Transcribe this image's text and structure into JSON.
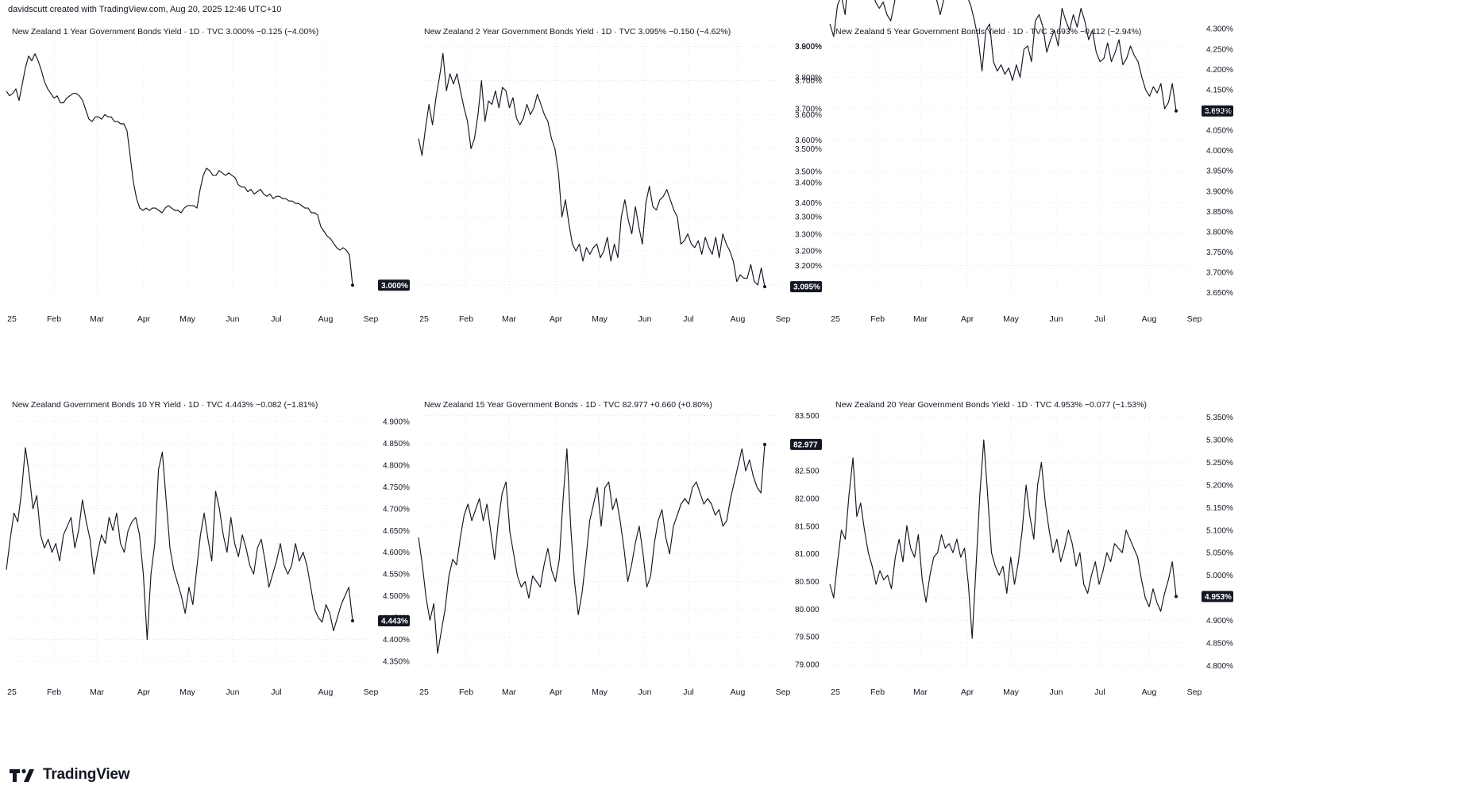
{
  "header": {
    "text": "davidscutt created with TradingView.com, Aug 20, 2025 12:46 UTC+10"
  },
  "footer": {
    "brand": "TradingView"
  },
  "x_axis_labels": [
    "25",
    "Feb",
    "Mar",
    "Apr",
    "May",
    "Jun",
    "Jul",
    "Aug",
    "Sep"
  ],
  "chart_data": [
    {
      "type": "line",
      "legend": "New Zealand 1 Year Government Bonds Yield · 1D · TVC  3.000%  −0.125 (−4.00%)",
      "last_label": "3.000%",
      "last": 3.0,
      "y_ticks": [],
      "ylim": [
        2.95,
        4.05
      ],
      "x_ticks": [
        "25",
        "Feb",
        "Mar",
        "Apr",
        "May",
        "Jun",
        "Jul",
        "Aug",
        "Sep"
      ],
      "values": [
        3.83,
        3.81,
        3.82,
        3.84,
        3.79,
        3.86,
        3.93,
        3.98,
        3.96,
        3.99,
        3.96,
        3.92,
        3.87,
        3.84,
        3.82,
        3.8,
        3.81,
        3.78,
        3.78,
        3.8,
        3.81,
        3.82,
        3.82,
        3.81,
        3.79,
        3.75,
        3.71,
        3.7,
        3.72,
        3.72,
        3.71,
        3.73,
        3.72,
        3.72,
        3.7,
        3.7,
        3.69,
        3.69,
        3.66,
        3.55,
        3.44,
        3.37,
        3.33,
        3.32,
        3.33,
        3.32,
        3.33,
        3.33,
        3.32,
        3.31,
        3.33,
        3.34,
        3.33,
        3.32,
        3.32,
        3.31,
        3.33,
        3.34,
        3.34,
        3.34,
        3.33,
        3.41,
        3.47,
        3.5,
        3.49,
        3.47,
        3.47,
        3.49,
        3.48,
        3.47,
        3.48,
        3.47,
        3.46,
        3.43,
        3.42,
        3.42,
        3.4,
        3.41,
        3.39,
        3.4,
        3.41,
        3.39,
        3.38,
        3.39,
        3.37,
        3.38,
        3.38,
        3.37,
        3.37,
        3.36,
        3.36,
        3.35,
        3.35,
        3.34,
        3.33,
        3.33,
        3.31,
        3.31,
        3.3,
        3.25,
        3.23,
        3.21,
        3.2,
        3.18,
        3.16,
        3.15,
        3.16,
        3.15,
        3.13,
        3.0
      ]
    },
    {
      "type": "line",
      "legend": "New Zealand 2 Year Government Bonds Yield · 1D · TVC  3.095%  −0.150 (−4.62%)",
      "last_label": "3.095%",
      "last": 3.095,
      "y_ticks": [
        "3.800%",
        "3.700%",
        "3.600%",
        "3.500%",
        "3.400%",
        "3.300%",
        "3.200%",
        "3.100%"
      ],
      "ylim": [
        3.065,
        3.82
      ],
      "x_ticks": [
        "25",
        "Feb",
        "Mar",
        "Apr",
        "May",
        "Jun",
        "Jul",
        "Aug",
        "Sep"
      ],
      "values": [
        3.53,
        3.48,
        3.56,
        3.63,
        3.57,
        3.65,
        3.71,
        3.78,
        3.67,
        3.72,
        3.69,
        3.72,
        3.67,
        3.62,
        3.58,
        3.5,
        3.53,
        3.6,
        3.7,
        3.58,
        3.64,
        3.63,
        3.67,
        3.62,
        3.68,
        3.67,
        3.62,
        3.65,
        3.59,
        3.57,
        3.59,
        3.63,
        3.6,
        3.62,
        3.66,
        3.63,
        3.6,
        3.58,
        3.53,
        3.5,
        3.43,
        3.3,
        3.35,
        3.28,
        3.22,
        3.2,
        3.22,
        3.17,
        3.21,
        3.19,
        3.21,
        3.22,
        3.18,
        3.2,
        3.24,
        3.17,
        3.22,
        3.18,
        3.3,
        3.35,
        3.29,
        3.25,
        3.33,
        3.27,
        3.22,
        3.34,
        3.39,
        3.33,
        3.32,
        3.35,
        3.36,
        3.38,
        3.35,
        3.32,
        3.3,
        3.22,
        3.23,
        3.25,
        3.22,
        3.21,
        3.23,
        3.19,
        3.24,
        3.21,
        3.19,
        3.24,
        3.18,
        3.25,
        3.22,
        3.2,
        3.17,
        3.11,
        3.13,
        3.12,
        3.12,
        3.16,
        3.11,
        3.1,
        3.15,
        3.095
      ]
    },
    {
      "type": "line",
      "legend": "New Zealand 5 Year Government Bonds Yield · 1D · TVC  3.693%  −0.112 (−2.94%)",
      "last_label": "3.693%",
      "last": 3.693,
      "y_ticks": [
        "3.900%",
        "3.800%",
        "3.700%",
        "3.600%",
        "3.500%",
        "3.400%",
        "3.300%",
        "3.200%"
      ],
      "ylim": [
        3.1,
        3.92
      ],
      "right_ticks": [
        "4.300%",
        "4.250%",
        "4.200%",
        "4.150%",
        "4.100%",
        "4.050%",
        "4.000%",
        "3.950%",
        "3.900%",
        "3.850%",
        "3.800%",
        "3.750%",
        "3.700%",
        "3.650%"
      ],
      "right_lim": [
        3.62,
        4.32
      ],
      "x_ticks": [
        "25",
        "Feb",
        "Mar",
        "Apr",
        "May",
        "Jun",
        "Jul",
        "Aug",
        "Sep"
      ],
      "values": [
        3.97,
        3.93,
        4.03,
        4.06,
        4.0,
        4.14,
        4.25,
        4.18,
        4.21,
        4.15,
        4.08,
        4.09,
        4.04,
        4.02,
        4.04,
        4.0,
        3.98,
        4.04,
        4.13,
        4.08,
        4.18,
        4.15,
        4.2,
        4.1,
        4.2,
        4.15,
        4.1,
        4.13,
        4.05,
        4.0,
        4.05,
        4.12,
        4.1,
        4.15,
        4.1,
        4.13,
        4.06,
        4.03,
        3.98,
        3.92,
        3.82,
        3.95,
        3.97,
        3.85,
        3.82,
        3.84,
        3.81,
        3.83,
        3.79,
        3.84,
        3.8,
        3.89,
        3.9,
        3.85,
        3.98,
        4.0,
        3.96,
        3.88,
        3.92,
        3.95,
        3.9,
        4.02,
        3.98,
        3.95,
        4.0,
        3.96,
        4.02,
        3.98,
        3.92,
        3.95,
        3.88,
        3.85,
        3.86,
        3.91,
        3.85,
        3.88,
        3.92,
        3.84,
        3.86,
        3.9,
        3.87,
        3.85,
        3.8,
        3.76,
        3.74,
        3.77,
        3.75,
        3.78,
        3.7,
        3.72,
        3.78,
        3.693
      ]
    },
    {
      "type": "line",
      "legend": "New Zealand Government Bonds 10 YR Yield · 1D · TVC  4.443%  −0.082 (−1.81%)",
      "last_label": "4.443%",
      "last": 4.443,
      "y_ticks": [
        "4.900%",
        "4.850%",
        "4.800%",
        "4.750%",
        "4.700%",
        "4.650%",
        "4.600%",
        "4.550%",
        "4.500%",
        "4.450%",
        "4.400%",
        "4.350%"
      ],
      "ylim": [
        4.33,
        4.92
      ],
      "x_ticks": [
        "25",
        "Feb",
        "Mar",
        "Apr",
        "May",
        "Jun",
        "Jul",
        "Aug",
        "Sep"
      ],
      "values": [
        4.56,
        4.63,
        4.69,
        4.67,
        4.74,
        4.84,
        4.78,
        4.7,
        4.73,
        4.64,
        4.61,
        4.63,
        4.6,
        4.62,
        4.58,
        4.64,
        4.66,
        4.68,
        4.61,
        4.65,
        4.72,
        4.67,
        4.63,
        4.55,
        4.6,
        4.64,
        4.62,
        4.68,
        4.65,
        4.69,
        4.62,
        4.6,
        4.65,
        4.67,
        4.68,
        4.64,
        4.55,
        4.4,
        4.55,
        4.62,
        4.79,
        4.83,
        4.72,
        4.61,
        4.56,
        4.53,
        4.5,
        4.46,
        4.52,
        4.48,
        4.56,
        4.64,
        4.69,
        4.63,
        4.58,
        4.74,
        4.7,
        4.64,
        4.6,
        4.68,
        4.62,
        4.59,
        4.64,
        4.61,
        4.57,
        4.55,
        4.61,
        4.63,
        4.58,
        4.52,
        4.55,
        4.58,
        4.62,
        4.57,
        4.55,
        4.57,
        4.62,
        4.58,
        4.6,
        4.57,
        4.52,
        4.47,
        4.45,
        4.44,
        4.48,
        4.46,
        4.42,
        4.45,
        4.48,
        4.5,
        4.52,
        4.443
      ]
    },
    {
      "type": "line",
      "legend": "New Zealand 15 Year Government Bonds · 1D · TVC  82.977  +0.660 (+0.80%)",
      "last_label": "82.977",
      "last": 82.977,
      "y_ticks": [
        "83.500",
        "83.000",
        "82.500",
        "82.000",
        "81.500",
        "81.000",
        "80.500",
        "80.000",
        "79.500",
        "79.000"
      ],
      "ylim": [
        78.9,
        83.55
      ],
      "x_ticks": [
        "25",
        "Feb",
        "Mar",
        "Apr",
        "May",
        "Jun",
        "Jul",
        "Aug",
        "Sep"
      ],
      "values": [
        81.3,
        80.8,
        80.2,
        79.8,
        80.1,
        79.2,
        79.6,
        80.0,
        80.6,
        80.9,
        80.8,
        81.3,
        81.7,
        81.9,
        81.6,
        81.8,
        82.0,
        81.6,
        81.9,
        81.4,
        80.9,
        81.6,
        82.1,
        82.3,
        81.4,
        81.0,
        80.6,
        80.4,
        80.5,
        80.2,
        80.6,
        80.5,
        80.4,
        80.8,
        81.1,
        80.7,
        80.5,
        80.9,
        82.0,
        82.9,
        81.5,
        80.5,
        79.9,
        80.3,
        80.9,
        81.6,
        81.9,
        82.2,
        81.5,
        82.2,
        82.3,
        81.8,
        82.0,
        81.6,
        81.1,
        80.5,
        80.8,
        81.2,
        81.5,
        81.0,
        80.4,
        80.6,
        81.2,
        81.6,
        81.8,
        81.3,
        81.0,
        81.5,
        81.7,
        81.9,
        82.0,
        81.9,
        82.2,
        82.3,
        82.1,
        81.9,
        82.0,
        81.9,
        81.7,
        81.8,
        81.5,
        81.6,
        82.0,
        82.3,
        82.6,
        82.9,
        82.5,
        82.7,
        82.4,
        82.2,
        82.1,
        82.977
      ]
    },
    {
      "type": "line",
      "legend": "New Zealand 20 Year Government Bonds Yield · 1D · TVC  4.953%  −0.077 (−1.53%)",
      "last_label": "4.953%",
      "last": 4.953,
      "y_ticks": [
        "5.350%",
        "5.300%",
        "5.250%",
        "5.200%",
        "5.150%",
        "5.100%",
        "5.050%",
        "5.000%",
        "4.950%",
        "4.900%",
        "4.850%",
        "4.800%"
      ],
      "ylim": [
        4.79,
        5.36
      ],
      "x_ticks": [
        "25",
        "Feb",
        "Mar",
        "Apr",
        "May",
        "Jun",
        "Jul",
        "Aug",
        "Sep"
      ],
      "values": [
        4.98,
        4.95,
        5.03,
        5.1,
        5.08,
        5.18,
        5.26,
        5.13,
        5.16,
        5.1,
        5.05,
        5.02,
        4.98,
        5.01,
        4.99,
        5.0,
        4.97,
        5.04,
        5.08,
        5.03,
        5.11,
        5.06,
        5.04,
        5.09,
        4.99,
        4.94,
        5.0,
        5.04,
        5.05,
        5.09,
        5.06,
        5.07,
        5.05,
        5.08,
        5.04,
        5.06,
        4.98,
        4.86,
        5.02,
        5.18,
        5.3,
        5.18,
        5.05,
        5.02,
        5.0,
        5.02,
        4.96,
        5.04,
        4.98,
        5.03,
        5.1,
        5.2,
        5.13,
        5.08,
        5.2,
        5.25,
        5.16,
        5.1,
        5.05,
        5.08,
        5.03,
        5.06,
        5.1,
        5.07,
        5.02,
        5.05,
        4.98,
        4.96,
        5.0,
        5.03,
        4.98,
        5.01,
        5.05,
        5.03,
        5.07,
        5.06,
        5.05,
        5.1,
        5.08,
        5.06,
        5.04,
        4.99,
        4.95,
        4.93,
        4.97,
        4.94,
        4.92,
        4.96,
        4.99,
        5.03,
        4.953
      ]
    }
  ]
}
